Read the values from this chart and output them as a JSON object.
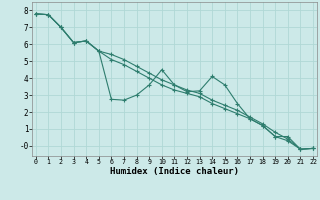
{
  "title": "",
  "xlabel": "Humidex (Indice chaleur)",
  "bg_color": "#cce9e8",
  "line_color": "#2e7d6e",
  "grid_color": "#b0d8d5",
  "xlim": [
    -0.3,
    22.3
  ],
  "ylim": [
    -0.6,
    8.5
  ],
  "xticks": [
    0,
    1,
    2,
    3,
    4,
    5,
    6,
    7,
    8,
    9,
    10,
    11,
    12,
    13,
    14,
    15,
    16,
    17,
    18,
    19,
    20,
    21,
    22
  ],
  "yticks": [
    0,
    1,
    2,
    3,
    4,
    5,
    6,
    7,
    8
  ],
  "line1_x": [
    0,
    1,
    2,
    3,
    4,
    5,
    6,
    7,
    8,
    9,
    10,
    11,
    12,
    13,
    14,
    15,
    16,
    17,
    18,
    19,
    20,
    21,
    22
  ],
  "line1_y": [
    7.8,
    7.75,
    7.0,
    6.1,
    6.2,
    5.6,
    2.75,
    2.7,
    3.0,
    3.6,
    4.5,
    3.6,
    3.2,
    3.25,
    4.1,
    3.6,
    2.5,
    1.6,
    1.2,
    0.55,
    0.55,
    -0.2,
    -0.15
  ],
  "line2_x": [
    0,
    1,
    2,
    3,
    4,
    5,
    6,
    7,
    8,
    9,
    10,
    11,
    12,
    13,
    14,
    15,
    16,
    17,
    18,
    19,
    20,
    21,
    22
  ],
  "line2_y": [
    7.8,
    7.75,
    7.0,
    6.1,
    6.2,
    5.6,
    5.1,
    4.8,
    4.4,
    4.0,
    3.6,
    3.3,
    3.1,
    2.9,
    2.5,
    2.2,
    1.9,
    1.6,
    1.2,
    0.55,
    0.3,
    -0.2,
    -0.15
  ],
  "line3_x": [
    0,
    1,
    2,
    3,
    4,
    5,
    6,
    7,
    8,
    9,
    10,
    11,
    12,
    13,
    14,
    15,
    16,
    17,
    18,
    19,
    20,
    21,
    22
  ],
  "line3_y": [
    7.8,
    7.75,
    7.0,
    6.1,
    6.2,
    5.6,
    5.4,
    5.1,
    4.7,
    4.3,
    3.9,
    3.6,
    3.3,
    3.1,
    2.7,
    2.4,
    2.1,
    1.7,
    1.3,
    0.8,
    0.4,
    -0.2,
    -0.15
  ]
}
